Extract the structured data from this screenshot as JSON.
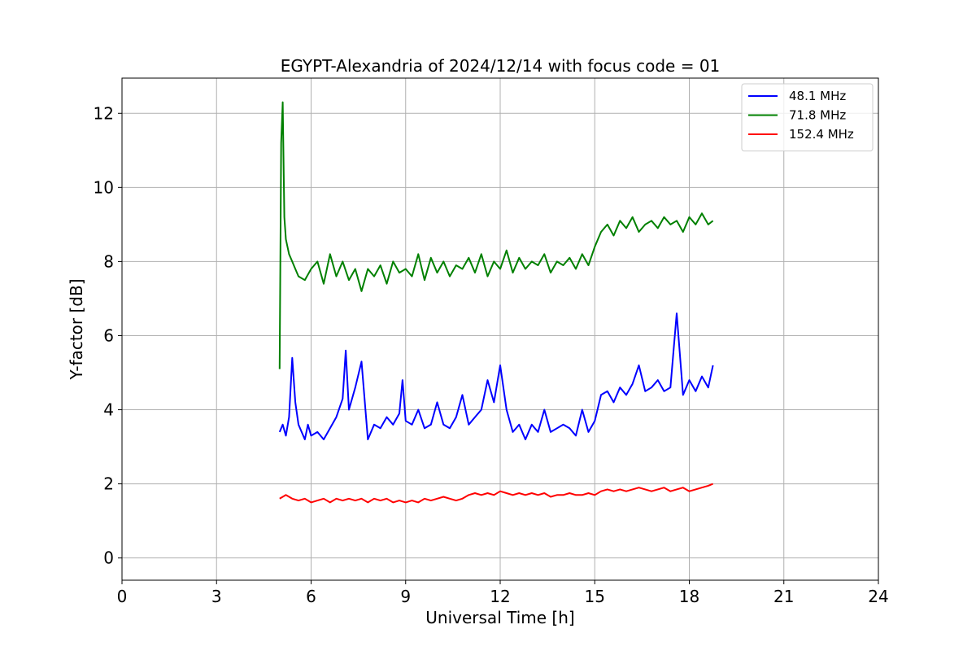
{
  "chart_data": {
    "type": "line",
    "title": "EGYPT-Alexandria of 2024/12/14 with focus code = 01",
    "xlabel": "Universal Time [h]",
    "ylabel": "Y-factor [dB]",
    "xlim": [
      0,
      24
    ],
    "ylim": [
      -0.6,
      12.95
    ],
    "xticks": [
      0,
      3,
      6,
      9,
      12,
      15,
      18,
      21,
      24
    ],
    "yticks": [
      0,
      2,
      4,
      6,
      8,
      10,
      12
    ],
    "grid": true,
    "legend_position": "top-right",
    "series": [
      {
        "name": "48.1 MHz",
        "color": "#0000ff",
        "x": [
          5.0,
          5.1,
          5.2,
          5.3,
          5.4,
          5.5,
          5.6,
          5.7,
          5.8,
          5.9,
          6.0,
          6.2,
          6.4,
          6.6,
          6.8,
          7.0,
          7.1,
          7.2,
          7.4,
          7.6,
          7.8,
          8.0,
          8.2,
          8.4,
          8.6,
          8.8,
          8.9,
          9.0,
          9.2,
          9.4,
          9.6,
          9.8,
          10.0,
          10.2,
          10.4,
          10.6,
          10.8,
          11.0,
          11.2,
          11.4,
          11.6,
          11.8,
          12.0,
          12.2,
          12.4,
          12.6,
          12.8,
          13.0,
          13.2,
          13.4,
          13.6,
          13.8,
          14.0,
          14.2,
          14.4,
          14.6,
          14.8,
          15.0,
          15.2,
          15.4,
          15.6,
          15.8,
          16.0,
          16.2,
          16.4,
          16.6,
          16.8,
          17.0,
          17.2,
          17.4,
          17.6,
          17.8,
          18.0,
          18.2,
          18.4,
          18.6,
          18.75
        ],
        "values": [
          3.4,
          3.6,
          3.3,
          3.8,
          5.4,
          4.2,
          3.6,
          3.4,
          3.2,
          3.6,
          3.3,
          3.4,
          3.2,
          3.5,
          3.8,
          4.3,
          5.6,
          4.0,
          4.6,
          5.3,
          3.2,
          3.6,
          3.5,
          3.8,
          3.6,
          3.9,
          4.8,
          3.7,
          3.6,
          4.0,
          3.5,
          3.6,
          4.2,
          3.6,
          3.5,
          3.8,
          4.4,
          3.6,
          3.8,
          4.0,
          4.8,
          4.2,
          5.2,
          4.0,
          3.4,
          3.6,
          3.2,
          3.6,
          3.4,
          4.0,
          3.4,
          3.5,
          3.6,
          3.5,
          3.3,
          4.0,
          3.4,
          3.7,
          4.4,
          4.5,
          4.2,
          4.6,
          4.4,
          4.7,
          5.2,
          4.5,
          4.6,
          4.8,
          4.5,
          4.6,
          6.6,
          4.4,
          4.8,
          4.5,
          4.9,
          4.6,
          5.2
        ]
      },
      {
        "name": "71.8 MHz",
        "color": "#008000",
        "x": [
          5.0,
          5.05,
          5.1,
          5.15,
          5.2,
          5.3,
          5.4,
          5.5,
          5.6,
          5.8,
          6.0,
          6.2,
          6.4,
          6.6,
          6.8,
          7.0,
          7.2,
          7.4,
          7.6,
          7.8,
          8.0,
          8.2,
          8.4,
          8.6,
          8.8,
          9.0,
          9.2,
          9.4,
          9.6,
          9.8,
          10.0,
          10.2,
          10.4,
          10.6,
          10.8,
          11.0,
          11.2,
          11.4,
          11.6,
          11.8,
          12.0,
          12.2,
          12.4,
          12.6,
          12.8,
          13.0,
          13.2,
          13.4,
          13.6,
          13.8,
          14.0,
          14.2,
          14.4,
          14.6,
          14.8,
          15.0,
          15.2,
          15.4,
          15.6,
          15.8,
          16.0,
          16.2,
          16.4,
          16.6,
          16.8,
          17.0,
          17.2,
          17.4,
          17.6,
          17.8,
          18.0,
          18.2,
          18.4,
          18.6,
          18.75
        ],
        "values": [
          5.1,
          11.2,
          12.3,
          9.2,
          8.6,
          8.2,
          8.0,
          7.8,
          7.6,
          7.5,
          7.8,
          8.0,
          7.4,
          8.2,
          7.6,
          8.0,
          7.5,
          7.8,
          7.2,
          7.8,
          7.6,
          7.9,
          7.4,
          8.0,
          7.7,
          7.8,
          7.6,
          8.2,
          7.5,
          8.1,
          7.7,
          8.0,
          7.6,
          7.9,
          7.8,
          8.1,
          7.7,
          8.2,
          7.6,
          8.0,
          7.8,
          8.3,
          7.7,
          8.1,
          7.8,
          8.0,
          7.9,
          8.2,
          7.7,
          8.0,
          7.9,
          8.1,
          7.8,
          8.2,
          7.9,
          8.4,
          8.8,
          9.0,
          8.7,
          9.1,
          8.9,
          9.2,
          8.8,
          9.0,
          9.1,
          8.9,
          9.2,
          9.0,
          9.1,
          8.8,
          9.2,
          9.0,
          9.3,
          9.0,
          9.1
        ]
      },
      {
        "name": "152.4 MHz",
        "color": "#ff0000",
        "x": [
          5.0,
          5.2,
          5.4,
          5.6,
          5.8,
          6.0,
          6.2,
          6.4,
          6.6,
          6.8,
          7.0,
          7.2,
          7.4,
          7.6,
          7.8,
          8.0,
          8.2,
          8.4,
          8.6,
          8.8,
          9.0,
          9.2,
          9.4,
          9.6,
          9.8,
          10.0,
          10.2,
          10.4,
          10.6,
          10.8,
          11.0,
          11.2,
          11.4,
          11.6,
          11.8,
          12.0,
          12.2,
          12.4,
          12.6,
          12.8,
          13.0,
          13.2,
          13.4,
          13.6,
          13.8,
          14.0,
          14.2,
          14.4,
          14.6,
          14.8,
          15.0,
          15.2,
          15.4,
          15.6,
          15.8,
          16.0,
          16.2,
          16.4,
          16.6,
          16.8,
          17.0,
          17.2,
          17.4,
          17.6,
          17.8,
          18.0,
          18.2,
          18.4,
          18.6,
          18.75
        ],
        "values": [
          1.6,
          1.7,
          1.6,
          1.55,
          1.6,
          1.5,
          1.55,
          1.6,
          1.5,
          1.6,
          1.55,
          1.6,
          1.55,
          1.6,
          1.5,
          1.6,
          1.55,
          1.6,
          1.5,
          1.55,
          1.5,
          1.55,
          1.5,
          1.6,
          1.55,
          1.6,
          1.65,
          1.6,
          1.55,
          1.6,
          1.7,
          1.75,
          1.7,
          1.75,
          1.7,
          1.8,
          1.75,
          1.7,
          1.75,
          1.7,
          1.75,
          1.7,
          1.75,
          1.65,
          1.7,
          1.7,
          1.75,
          1.7,
          1.7,
          1.75,
          1.7,
          1.8,
          1.85,
          1.8,
          1.85,
          1.8,
          1.85,
          1.9,
          1.85,
          1.8,
          1.85,
          1.9,
          1.8,
          1.85,
          1.9,
          1.8,
          1.85,
          1.9,
          1.95,
          2.0
        ]
      }
    ]
  }
}
